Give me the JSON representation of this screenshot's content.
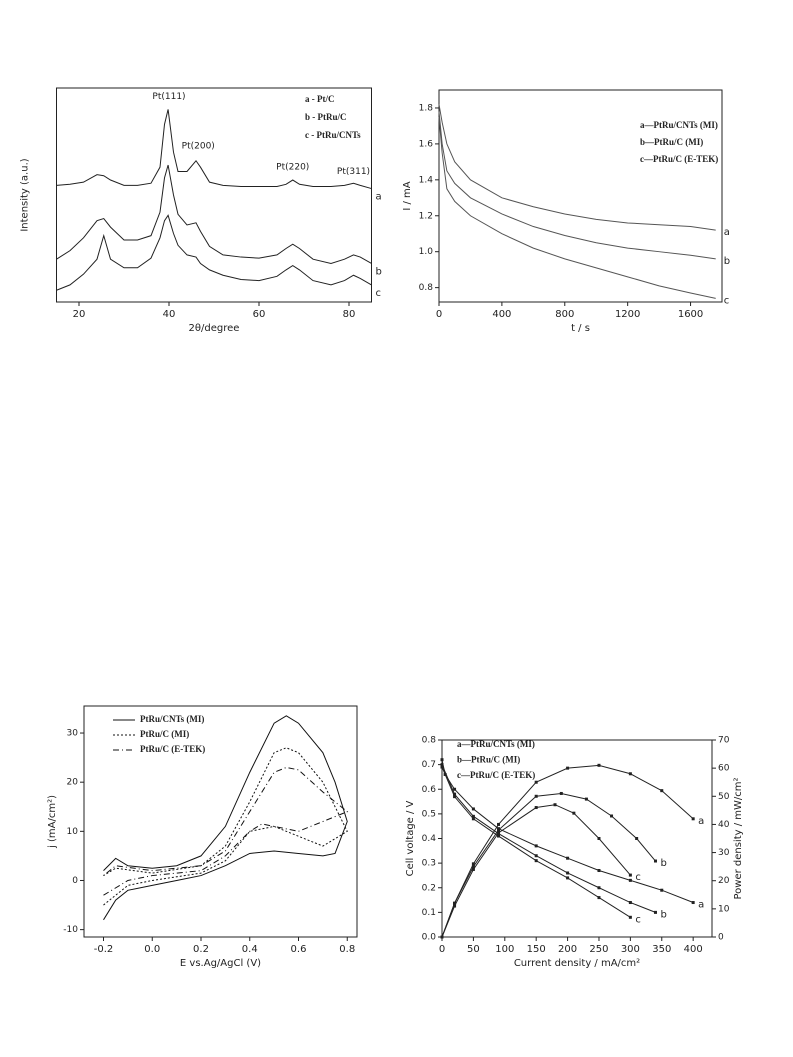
{
  "chart_data": [
    {
      "type": "line",
      "x_label": "2θ/degree",
      "y_label": "Intensity (a.u.)",
      "xlim": [
        15,
        85
      ],
      "xticks": [
        20,
        40,
        60,
        80
      ],
      "ylim": [
        0,
        10
      ],
      "annotations": [
        "Pt(111)",
        "Pt(200)",
        "Pt(220)",
        "Pt(311)"
      ],
      "x": [
        15,
        18,
        21,
        24,
        25.5,
        27,
        30,
        33,
        36,
        38,
        39,
        39.8,
        41,
        42,
        44,
        46,
        47,
        49,
        52,
        56,
        60,
        64,
        66,
        67.5,
        69,
        72,
        76,
        79,
        81,
        82.5,
        85
      ],
      "series": [
        {
          "name": "a - Pt/C",
          "label": "a",
          "color": "#222222",
          "style": "solid",
          "values": [
            5.45,
            5.5,
            5.6,
            5.95,
            5.9,
            5.7,
            5.45,
            5.45,
            5.55,
            6.3,
            8.3,
            9.0,
            7.0,
            6.1,
            6.1,
            6.6,
            6.3,
            5.6,
            5.45,
            5.4,
            5.4,
            5.4,
            5.5,
            5.7,
            5.5,
            5.4,
            5.4,
            5.45,
            5.55,
            5.45,
            5.3
          ]
        },
        {
          "name": "b - PtRu/C",
          "label": "b",
          "color": "#222222",
          "style": "solid",
          "values": [
            2.0,
            2.4,
            3.0,
            3.8,
            3.9,
            3.5,
            2.9,
            2.9,
            3.1,
            4.2,
            5.8,
            6.4,
            5.0,
            4.1,
            3.6,
            3.7,
            3.3,
            2.6,
            2.2,
            2.1,
            2.05,
            2.2,
            2.5,
            2.7,
            2.5,
            2.0,
            1.8,
            2.0,
            2.2,
            2.1,
            1.8
          ]
        },
        {
          "name": "c - PtRu/CNTs",
          "label": "c",
          "color": "#222222",
          "style": "solid",
          "values": [
            0.55,
            0.8,
            1.3,
            2.0,
            3.1,
            2.0,
            1.6,
            1.6,
            2.05,
            3.0,
            3.8,
            4.05,
            3.2,
            2.65,
            2.2,
            2.1,
            1.8,
            1.5,
            1.25,
            1.05,
            1.0,
            1.2,
            1.5,
            1.7,
            1.5,
            1.0,
            0.8,
            1.0,
            1.25,
            1.1,
            0.8
          ]
        }
      ]
    },
    {
      "type": "line",
      "x_label": "t / s",
      "y_label": "I / mA",
      "xlim": [
        0,
        1800
      ],
      "xticks": [
        0,
        400,
        800,
        1200,
        1600
      ],
      "ylim": [
        0.72,
        1.9
      ],
      "yticks": [
        0.8,
        {
          "value": 1.0,
          "label": "1.0"
        },
        1.2,
        1.4,
        1.6,
        1.8
      ],
      "x": [
        0,
        20,
        50,
        100,
        200,
        400,
        600,
        800,
        1000,
        1200,
        1400,
        1600,
        1760
      ],
      "series": [
        {
          "name": "a—PtRu/CNTs (MI)",
          "label": "a",
          "color": "#555555",
          "style": "solid",
          "values": [
            1.82,
            1.72,
            1.6,
            1.5,
            1.4,
            1.3,
            1.25,
            1.21,
            1.18,
            1.16,
            1.15,
            1.14,
            1.12
          ]
        },
        {
          "name": "b—PtRu/C (MI)",
          "label": "b",
          "color": "#555555",
          "style": "solid",
          "values": [
            1.78,
            1.6,
            1.45,
            1.38,
            1.3,
            1.21,
            1.14,
            1.09,
            1.05,
            1.02,
            1.0,
            0.98,
            0.96
          ]
        },
        {
          "name": "c—PtRu/C (E-TEK)",
          "label": "c",
          "color": "#555555",
          "style": "solid",
          "values": [
            1.75,
            1.55,
            1.35,
            1.28,
            1.2,
            1.1,
            1.02,
            0.96,
            0.91,
            0.86,
            0.81,
            0.77,
            0.74
          ]
        }
      ]
    },
    {
      "type": "line",
      "x_label": "E vs.Ag/AgCl (V)",
      "y_label": "j (mA/cm²)",
      "xlim": [
        -0.28,
        0.84
      ],
      "xticks": [
        -0.2,
        {
          "value": 0,
          "label": "0.0"
        },
        0.2,
        0.4,
        0.6,
        0.8
      ],
      "ylim": [
        -11.5,
        35.5
      ],
      "yticks": [
        -10,
        0,
        10,
        20,
        30
      ],
      "series": [
        {
          "name": "PtRu/CNTs (MI)",
          "color": "#111111",
          "style": "solid",
          "x": [
            -0.2,
            -0.15,
            -0.1,
            0,
            0.1,
            0.2,
            0.3,
            0.4,
            0.5,
            0.6,
            0.7,
            0.75,
            0.8,
            0.75,
            0.7,
            0.6,
            0.55,
            0.5,
            0.4,
            0.3,
            0.2,
            0.1,
            0,
            -0.1,
            -0.15,
            -0.2
          ],
          "values": [
            -8,
            -4,
            -2,
            -1,
            0,
            1,
            3,
            5.5,
            6,
            5.5,
            5,
            5.5,
            12,
            20,
            26,
            32,
            33.5,
            32,
            22,
            11,
            5,
            3,
            2.5,
            3,
            4.5,
            2
          ]
        },
        {
          "name": "PtRu/C (MI)",
          "color": "#111111",
          "style": "dotted",
          "x": [
            -0.2,
            -0.1,
            0,
            0.2,
            0.3,
            0.4,
            0.5,
            0.6,
            0.7,
            0.8,
            0.7,
            0.6,
            0.55,
            0.5,
            0.4,
            0.3,
            0.2,
            0,
            -0.15,
            -0.2
          ],
          "values": [
            -5,
            -1,
            0,
            1.5,
            4,
            10,
            11,
            9,
            7,
            10,
            20,
            26,
            27,
            26,
            16,
            7,
            3,
            1.5,
            2.5,
            1
          ]
        },
        {
          "name": "PtRu/C (E-TEK)",
          "color": "#111111",
          "style": "dashdot",
          "x": [
            -0.2,
            -0.1,
            0,
            0.2,
            0.3,
            0.4,
            0.45,
            0.5,
            0.6,
            0.7,
            0.8,
            0.7,
            0.6,
            0.55,
            0.5,
            0.4,
            0.3,
            0.2,
            0,
            -0.15,
            -0.2
          ],
          "values": [
            -3,
            0,
            1,
            2,
            5,
            10,
            11.5,
            11,
            10,
            12,
            14,
            18,
            22.5,
            23,
            22,
            14,
            6,
            3,
            2,
            3,
            1
          ]
        }
      ]
    },
    {
      "type": "line",
      "x_label": "Current density / mA/cm²",
      "y_label": "Cell voltage / V",
      "y2_label": "Power density / mW/cm²",
      "xlim": [
        0,
        430
      ],
      "xticks": [
        0,
        50,
        100,
        150,
        200,
        250,
        300,
        350,
        400
      ],
      "ylim": [
        0,
        0.8
      ],
      "yticks": [
        {
          "value": 0,
          "label": "0.0"
        },
        0.1,
        0.2,
        0.3,
        0.4,
        0.5,
        0.6,
        0.7,
        0.8
      ],
      "y2lim": [
        0,
        70
      ],
      "y2ticks": [
        0,
        10,
        20,
        30,
        40,
        50,
        60,
        70
      ],
      "markers": true,
      "series": [
        {
          "name": "a—PtRu/CNTs (MI)",
          "label": "a",
          "color": "#222222",
          "style": "solid",
          "x": [
            0,
            5,
            20,
            50,
            90,
            150,
            200,
            250,
            300,
            350,
            400
          ],
          "values": [
            0.72,
            0.66,
            0.6,
            0.52,
            0.44,
            0.37,
            0.32,
            0.27,
            0.23,
            0.19,
            0.14
          ]
        },
        {
          "name": "b—PtRu/C (MI)",
          "label": "b",
          "color": "#222222",
          "style": "solid",
          "x": [
            0,
            20,
            50,
            90,
            150,
            200,
            250,
            300,
            340
          ],
          "values": [
            0.7,
            0.58,
            0.49,
            0.42,
            0.33,
            0.26,
            0.2,
            0.14,
            0.1
          ]
        },
        {
          "name": "c—PtRu/C (E-TEK)",
          "label": "c",
          "color": "#222222",
          "style": "solid",
          "x": [
            0,
            20,
            50,
            90,
            150,
            200,
            250,
            300
          ],
          "values": [
            0.69,
            0.57,
            0.48,
            0.41,
            0.31,
            0.24,
            0.16,
            0.08
          ]
        },
        {
          "label": "a",
          "color": "#222222",
          "style": "solid",
          "axis": "y2",
          "x": [
            0,
            20,
            50,
            90,
            150,
            200,
            250,
            300,
            350,
            400
          ],
          "values": [
            0,
            12,
            26,
            40,
            55,
            60,
            61,
            58,
            52,
            42
          ]
        },
        {
          "label": "b",
          "color": "#222222",
          "style": "solid",
          "axis": "y2",
          "x": [
            0,
            20,
            50,
            90,
            150,
            190,
            230,
            270,
            310,
            340
          ],
          "values": [
            0,
            12,
            25,
            38,
            50,
            51,
            49,
            43,
            35,
            27
          ]
        },
        {
          "label": "c",
          "color": "#222222",
          "style": "solid",
          "axis": "y2",
          "x": [
            0,
            20,
            50,
            90,
            150,
            180,
            210,
            250,
            300
          ],
          "values": [
            0,
            11,
            24,
            37,
            46,
            47,
            44,
            35,
            22
          ]
        }
      ]
    }
  ]
}
